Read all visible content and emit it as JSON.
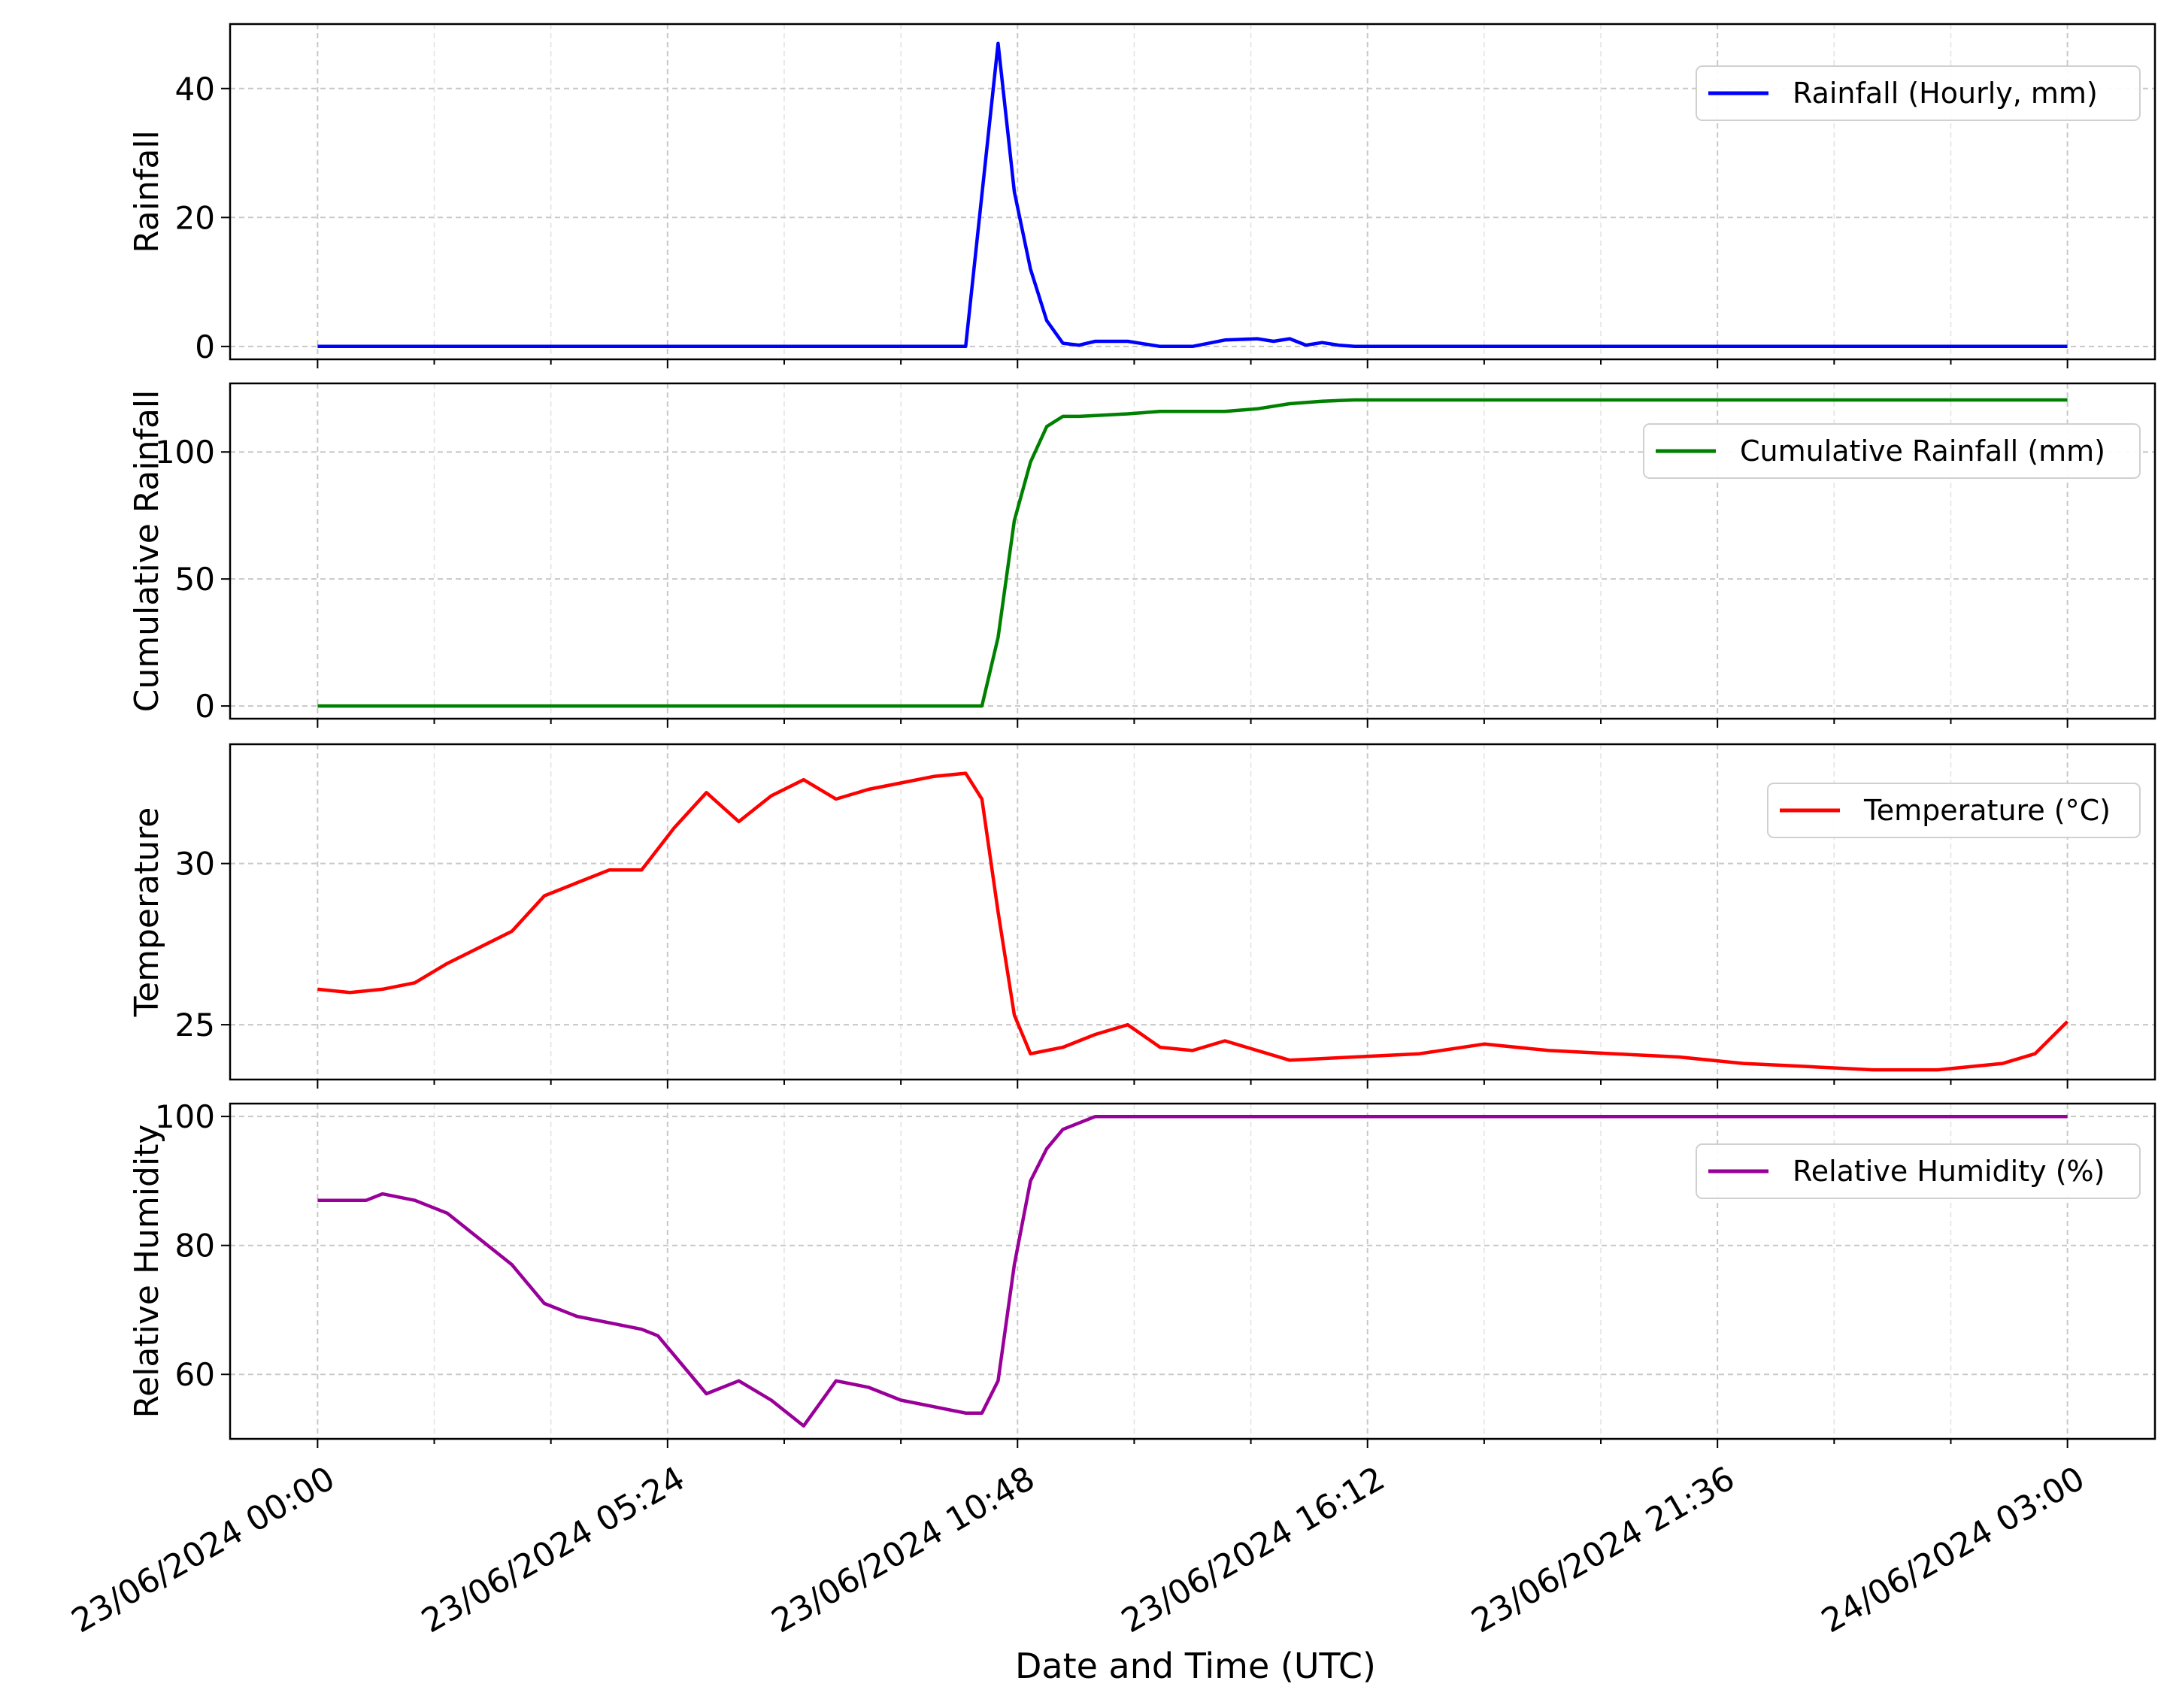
{
  "figure": {
    "xlabel": "Date and Time (UTC)",
    "x_tick_labels": [
      "23/06/2024 00:00",
      "23/06/2024 05:24",
      "23/06/2024 10:48",
      "23/06/2024 16:12",
      "23/06/2024 21:36",
      "24/06/2024 03:00"
    ]
  },
  "chart_data": [
    {
      "type": "line",
      "ylabel": "Rainfall",
      "ylim": [
        -2,
        50
      ],
      "y_ticks": [
        0,
        20,
        40
      ],
      "grid": true,
      "legend_position": "upper-right",
      "x_axis": "date/time (UTC), shared across panels",
      "xlim": [
        "2024-06-22 22:39",
        "2024-06-24 04:21"
      ],
      "series": [
        {
          "name": "Rainfall (Hourly, mm)",
          "color": "#0000ff",
          "x": [
            "2024-06-23 00:00",
            "2024-06-23 10:00",
            "2024-06-23 10:30",
            "2024-06-23 10:45",
            "2024-06-23 11:00",
            "2024-06-23 11:15",
            "2024-06-23 11:30",
            "2024-06-23 11:45",
            "2024-06-23 12:00",
            "2024-06-23 12:15",
            "2024-06-23 12:30",
            "2024-06-23 13:00",
            "2024-06-23 13:30",
            "2024-06-23 14:00",
            "2024-06-23 14:30",
            "2024-06-23 14:45",
            "2024-06-23 15:00",
            "2024-06-23 15:15",
            "2024-06-23 15:30",
            "2024-06-23 15:45",
            "2024-06-23 16:00",
            "2024-06-23 16:30",
            "2024-06-24 03:00"
          ],
          "y": [
            0,
            0,
            47,
            24,
            12,
            4,
            0.5,
            0.2,
            0.8,
            0.8,
            0.8,
            0,
            0,
            1,
            1.2,
            0.8,
            1.2,
            0.2,
            0.6,
            0.2,
            0,
            0,
            0
          ]
        }
      ]
    },
    {
      "type": "line",
      "ylabel": "Cumulative Rainfall",
      "ylim": [
        -5,
        127
      ],
      "y_ticks": [
        0,
        50,
        100
      ],
      "grid": true,
      "legend_position": "center-right",
      "series": [
        {
          "name": "Cumulative Rainfall (mm)",
          "color": "#008000",
          "x": [
            "2024-06-23 00:00",
            "2024-06-23 10:15",
            "2024-06-23 10:30",
            "2024-06-23 10:45",
            "2024-06-23 11:00",
            "2024-06-23 11:15",
            "2024-06-23 11:30",
            "2024-06-23 11:45",
            "2024-06-23 12:30",
            "2024-06-23 13:00",
            "2024-06-23 14:00",
            "2024-06-23 14:30",
            "2024-06-23 15:00",
            "2024-06-23 15:30",
            "2024-06-23 16:00",
            "2024-06-24 03:00"
          ],
          "y": [
            0,
            0,
            27,
            73,
            96,
            110,
            114,
            114,
            115,
            116,
            116,
            117,
            119,
            120,
            120.5,
            120.5
          ]
        }
      ]
    },
    {
      "type": "line",
      "ylabel": "Temperature",
      "ylim": [
        23.3,
        33.7
      ],
      "y_ticks": [
        25,
        30
      ],
      "grid": true,
      "legend_position": "upper-right",
      "series": [
        {
          "name": "Temperature (°C)",
          "color": "#ff0000",
          "x": [
            "2024-06-23 00:00",
            "2024-06-23 00:30",
            "2024-06-23 01:00",
            "2024-06-23 01:30",
            "2024-06-23 02:00",
            "2024-06-23 02:30",
            "2024-06-23 03:00",
            "2024-06-23 03:30",
            "2024-06-23 04:00",
            "2024-06-23 04:30",
            "2024-06-23 05:00",
            "2024-06-23 05:30",
            "2024-06-23 06:00",
            "2024-06-23 06:30",
            "2024-06-23 07:00",
            "2024-06-23 07:30",
            "2024-06-23 08:00",
            "2024-06-23 08:30",
            "2024-06-23 09:00",
            "2024-06-23 09:30",
            "2024-06-23 10:00",
            "2024-06-23 10:15",
            "2024-06-23 10:30",
            "2024-06-23 10:45",
            "2024-06-23 11:00",
            "2024-06-23 11:30",
            "2024-06-23 12:00",
            "2024-06-23 12:30",
            "2024-06-23 13:00",
            "2024-06-23 13:30",
            "2024-06-23 14:00",
            "2024-06-23 15:00",
            "2024-06-23 16:00",
            "2024-06-23 17:00",
            "2024-06-23 18:00",
            "2024-06-23 19:00",
            "2024-06-23 20:00",
            "2024-06-23 21:00",
            "2024-06-23 22:00",
            "2024-06-23 23:00",
            "2024-06-24 00:00",
            "2024-06-24 01:00",
            "2024-06-24 02:00",
            "2024-06-24 02:30",
            "2024-06-24 03:00"
          ],
          "y": [
            26.1,
            26.0,
            26.1,
            26.3,
            26.9,
            27.4,
            27.9,
            29.0,
            29.4,
            29.8,
            29.8,
            31.1,
            32.2,
            31.3,
            32.1,
            32.6,
            32.0,
            32.3,
            32.5,
            32.7,
            32.8,
            32.0,
            28.5,
            25.3,
            24.1,
            24.3,
            24.7,
            25.0,
            24.3,
            24.2,
            24.5,
            23.9,
            24.0,
            24.1,
            24.4,
            24.2,
            24.1,
            24.0,
            23.8,
            23.7,
            23.6,
            23.6,
            23.8,
            24.1,
            25.1
          ]
        }
      ]
    },
    {
      "type": "line",
      "ylabel": "Relative Humidity",
      "ylim": [
        50,
        102
      ],
      "y_ticks": [
        60,
        80,
        100
      ],
      "grid": true,
      "legend_position": "upper-right",
      "series": [
        {
          "name": "Relative Humidity (%)",
          "color": "#990099",
          "x": [
            "2024-06-23 00:00",
            "2024-06-23 00:45",
            "2024-06-23 01:00",
            "2024-06-23 01:30",
            "2024-06-23 02:00",
            "2024-06-23 02:30",
            "2024-06-23 03:00",
            "2024-06-23 03:30",
            "2024-06-23 04:00",
            "2024-06-23 04:30",
            "2024-06-23 05:00",
            "2024-06-23 05:15",
            "2024-06-23 05:30",
            "2024-06-23 06:00",
            "2024-06-23 06:30",
            "2024-06-23 07:00",
            "2024-06-23 07:30",
            "2024-06-23 08:00",
            "2024-06-23 08:30",
            "2024-06-23 09:00",
            "2024-06-23 09:30",
            "2024-06-23 10:00",
            "2024-06-23 10:15",
            "2024-06-23 10:30",
            "2024-06-23 10:45",
            "2024-06-23 11:00",
            "2024-06-23 11:15",
            "2024-06-23 11:30",
            "2024-06-23 12:00",
            "2024-06-24 03:00"
          ],
          "y": [
            87,
            87,
            88,
            87,
            85,
            81,
            77,
            71,
            69,
            68,
            67,
            66,
            63,
            57,
            59,
            56,
            52,
            59,
            58,
            56,
            55,
            54,
            54,
            59,
            77,
            90,
            95,
            98,
            100,
            100
          ]
        }
      ]
    }
  ]
}
